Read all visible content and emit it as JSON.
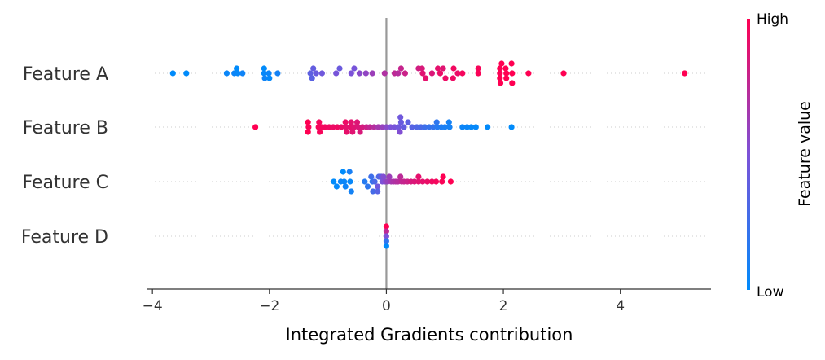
{
  "chart_data": {
    "type": "scatter",
    "subtype": "beeswarm",
    "xlabel": "Integrated Gradients contribution",
    "xlim": [
      -4.1,
      5.55
    ],
    "xticks": [
      -4,
      -2,
      0,
      2,
      4
    ],
    "xtick_labels": [
      "−4",
      "−2",
      "0",
      "2",
      "4"
    ],
    "colorbar": {
      "label": "Feature value",
      "high_label": "High",
      "low_label": "Low",
      "high_color": "#ff0052",
      "mid_color": "#7c52d8",
      "low_color": "#008bfb"
    },
    "colors": {
      "zero_line": "#999999",
      "grid_dots": "#cccccc",
      "axis": "#333333"
    },
    "features": [
      {
        "name": "Feature A",
        "points": [
          [
            -3.65,
            0.0
          ],
          [
            -3.42,
            0.0
          ],
          [
            -2.73,
            0.0
          ],
          [
            -2.6,
            0.0
          ],
          [
            -2.56,
            0.15
          ],
          [
            -2.54,
            0.0
          ],
          [
            -2.46,
            0.0
          ],
          [
            -2.09,
            0.15
          ],
          [
            -2.09,
            0.0
          ],
          [
            -2.08,
            -0.15
          ],
          [
            -2.01,
            0.0
          ],
          [
            -2.0,
            -0.15
          ],
          [
            -1.86,
            0.0
          ],
          [
            -1.3,
            0.0
          ],
          [
            -1.27,
            -0.15
          ],
          [
            -1.25,
            0.15
          ],
          [
            -1.2,
            0.0
          ],
          [
            -1.1,
            0.0
          ],
          [
            -0.86,
            0.0
          ],
          [
            -0.8,
            0.15
          ],
          [
            -0.6,
            0.0
          ],
          [
            -0.55,
            0.15
          ],
          [
            -0.46,
            0.0
          ],
          [
            -0.35,
            0.0
          ],
          [
            -0.24,
            0.0
          ],
          [
            -0.03,
            0.0
          ],
          [
            0.14,
            0.0
          ],
          [
            0.2,
            0.0
          ],
          [
            0.25,
            0.15
          ],
          [
            0.32,
            0.0
          ],
          [
            0.55,
            0.15
          ],
          [
            0.61,
            0.15
          ],
          [
            0.62,
            0.0
          ],
          [
            0.67,
            -0.15
          ],
          [
            0.78,
            0.0
          ],
          [
            0.88,
            0.15
          ],
          [
            0.92,
            0.0
          ],
          [
            0.97,
            0.15
          ],
          [
            1.01,
            -0.15
          ],
          [
            1.14,
            -0.15
          ],
          [
            1.15,
            0.15
          ],
          [
            1.22,
            0.0
          ],
          [
            1.3,
            0.0
          ],
          [
            1.57,
            0.15
          ],
          [
            1.57,
            0.0
          ],
          [
            1.94,
            0.0
          ],
          [
            1.94,
            0.15
          ],
          [
            1.94,
            -0.15
          ],
          [
            1.95,
            -0.3
          ],
          [
            1.97,
            0.3
          ],
          [
            2.04,
            0.15
          ],
          [
            2.05,
            0.0
          ],
          [
            2.05,
            -0.15
          ],
          [
            2.14,
            0.3
          ],
          [
            2.15,
            -0.3
          ],
          [
            2.15,
            0.0
          ],
          [
            2.43,
            0.0
          ],
          [
            3.03,
            0.0
          ],
          [
            5.1,
            0.0
          ]
        ],
        "values": [
          0.0,
          0.0,
          0.04,
          0.05,
          0.0,
          0.03,
          0.06,
          0.0,
          0.03,
          0.06,
          0.05,
          0.02,
          0.08,
          0.38,
          0.36,
          0.4,
          0.42,
          0.45,
          0.48,
          0.43,
          0.5,
          0.48,
          0.55,
          0.58,
          0.62,
          0.7,
          0.75,
          0.72,
          0.78,
          0.8,
          0.82,
          0.85,
          0.88,
          0.9,
          0.86,
          0.9,
          0.92,
          0.88,
          0.93,
          0.94,
          0.95,
          0.92,
          0.96,
          0.97,
          0.98,
          0.99,
          1.0,
          1.0,
          1.0,
          1.0,
          1.0,
          1.0,
          1.0,
          1.0,
          1.0,
          1.0,
          1.0,
          1.0,
          1.0
        ]
      },
      {
        "name": "Feature B",
        "points": [
          [
            -2.24,
            0.0
          ],
          [
            -1.34,
            -0.15
          ],
          [
            -1.34,
            0.15
          ],
          [
            -1.33,
            0.0
          ],
          [
            -1.16,
            0.0
          ],
          [
            -1.15,
            0.15
          ],
          [
            -1.14,
            -0.15
          ],
          [
            -1.11,
            0.0
          ],
          [
            -1.05,
            0.0
          ],
          [
            -0.98,
            0.0
          ],
          [
            -0.91,
            0.0
          ],
          [
            -0.84,
            0.0
          ],
          [
            -0.77,
            0.0
          ],
          [
            -0.7,
            0.15
          ],
          [
            -0.69,
            0.0
          ],
          [
            -0.68,
            -0.15
          ],
          [
            -0.62,
            0.0
          ],
          [
            -0.6,
            0.15
          ],
          [
            -0.58,
            -0.15
          ],
          [
            -0.55,
            0.0
          ],
          [
            -0.5,
            0.15
          ],
          [
            -0.48,
            0.0
          ],
          [
            -0.45,
            -0.15
          ],
          [
            -0.41,
            0.0
          ],
          [
            -0.34,
            0.0
          ],
          [
            -0.28,
            0.0
          ],
          [
            -0.21,
            0.0
          ],
          [
            -0.14,
            0.0
          ],
          [
            -0.07,
            0.0
          ],
          [
            0.0,
            0.0
          ],
          [
            0.07,
            0.0
          ],
          [
            0.14,
            0.0
          ],
          [
            0.21,
            0.0
          ],
          [
            0.23,
            -0.15
          ],
          [
            0.24,
            0.3
          ],
          [
            0.25,
            0.15
          ],
          [
            0.3,
            0.0
          ],
          [
            0.37,
            0.15
          ],
          [
            0.44,
            0.0
          ],
          [
            0.52,
            0.0
          ],
          [
            0.59,
            0.0
          ],
          [
            0.66,
            0.0
          ],
          [
            0.73,
            0.0
          ],
          [
            0.8,
            0.0
          ],
          [
            0.86,
            0.15
          ],
          [
            0.87,
            0.0
          ],
          [
            0.94,
            0.0
          ],
          [
            1.0,
            0.0
          ],
          [
            1.07,
            0.15
          ],
          [
            1.08,
            0.0
          ],
          [
            1.3,
            0.0
          ],
          [
            1.38,
            0.0
          ],
          [
            1.45,
            0.0
          ],
          [
            1.53,
            0.0
          ],
          [
            1.73,
            0.0
          ],
          [
            2.14,
            0.0
          ]
        ],
        "values": [
          1.0,
          1.0,
          1.0,
          0.98,
          0.97,
          0.96,
          0.97,
          0.96,
          0.95,
          0.94,
          0.93,
          0.94,
          0.92,
          0.93,
          0.9,
          0.91,
          0.9,
          0.89,
          0.88,
          0.88,
          0.87,
          0.86,
          0.85,
          0.84,
          0.8,
          0.76,
          0.72,
          0.66,
          0.6,
          0.55,
          0.5,
          0.48,
          0.45,
          0.52,
          0.45,
          0.42,
          0.4,
          0.38,
          0.35,
          0.32,
          0.3,
          0.25,
          0.22,
          0.2,
          0.18,
          0.15,
          0.12,
          0.1,
          0.08,
          0.08,
          0.05,
          0.04,
          0.03,
          0.02,
          0.01,
          0.0
        ]
      },
      {
        "name": "Feature C",
        "points": [
          [
            -0.9,
            0.0
          ],
          [
            -0.85,
            -0.15
          ],
          [
            -0.78,
            0.0
          ],
          [
            -0.74,
            0.3
          ],
          [
            -0.72,
            0.0
          ],
          [
            -0.7,
            -0.15
          ],
          [
            -0.63,
            0.3
          ],
          [
            -0.62,
            0.0
          ],
          [
            -0.6,
            -0.3
          ],
          [
            -0.37,
            0.0
          ],
          [
            -0.32,
            -0.15
          ],
          [
            -0.26,
            0.15
          ],
          [
            -0.24,
            0.0
          ],
          [
            -0.23,
            -0.3
          ],
          [
            -0.2,
            0.0
          ],
          [
            -0.15,
            -0.15
          ],
          [
            -0.15,
            -0.3
          ],
          [
            -0.13,
            0.15
          ],
          [
            -0.09,
            0.15
          ],
          [
            -0.07,
            0.0
          ],
          [
            -0.05,
            0.15
          ],
          [
            -0.02,
            0.0
          ],
          [
            0.02,
            0.0
          ],
          [
            0.05,
            0.15
          ],
          [
            0.08,
            0.0
          ],
          [
            0.12,
            0.0
          ],
          [
            0.16,
            0.0
          ],
          [
            0.2,
            0.0
          ],
          [
            0.24,
            0.15
          ],
          [
            0.26,
            0.0
          ],
          [
            0.3,
            0.0
          ],
          [
            0.36,
            0.0
          ],
          [
            0.42,
            0.0
          ],
          [
            0.48,
            0.0
          ],
          [
            0.55,
            0.0
          ],
          [
            0.55,
            0.15
          ],
          [
            0.62,
            0.0
          ],
          [
            0.7,
            0.0
          ],
          [
            0.78,
            0.0
          ],
          [
            0.85,
            0.0
          ],
          [
            0.95,
            0.0
          ],
          [
            0.97,
            0.15
          ],
          [
            1.1,
            0.0
          ]
        ],
        "values": [
          0.0,
          0.02,
          0.05,
          0.0,
          0.04,
          0.06,
          0.1,
          0.03,
          0.08,
          0.15,
          0.18,
          0.25,
          0.2,
          0.28,
          0.3,
          0.45,
          0.35,
          0.32,
          0.4,
          0.5,
          0.52,
          0.55,
          0.6,
          0.62,
          0.65,
          0.68,
          0.7,
          0.72,
          0.74,
          0.76,
          0.78,
          0.8,
          0.84,
          0.86,
          0.88,
          0.9,
          0.9,
          0.92,
          0.94,
          0.96,
          0.98,
          1.0,
          1.0
        ]
      },
      {
        "name": "Feature D",
        "points": [
          [
            0.0,
            0.3
          ],
          [
            0.0,
            0.15
          ],
          [
            0.0,
            0.0
          ],
          [
            0.0,
            -0.15
          ],
          [
            0.0,
            -0.3
          ]
        ],
        "values": [
          1.0,
          0.75,
          0.5,
          0.2,
          0.0
        ]
      }
    ]
  }
}
